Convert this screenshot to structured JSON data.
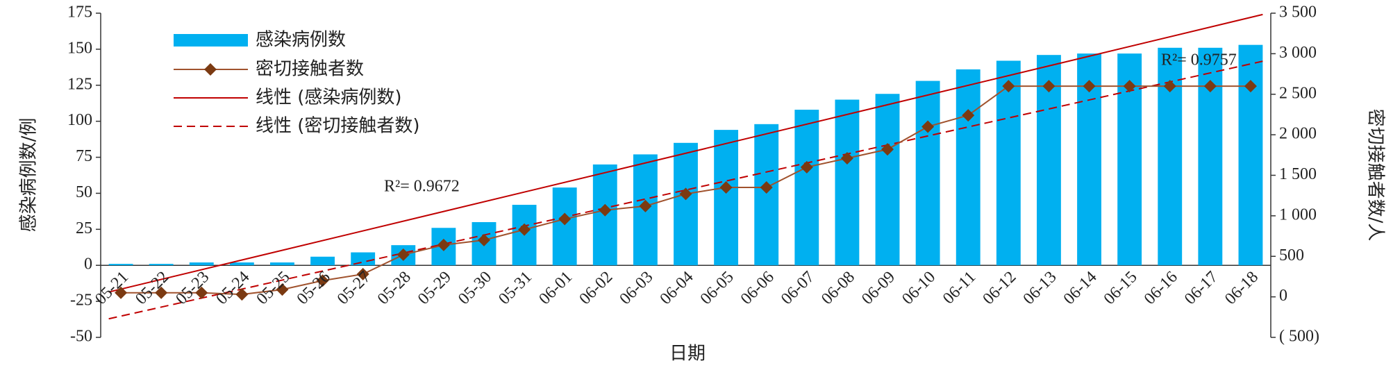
{
  "chart_data": {
    "type": "bar",
    "x_label": "日期",
    "y_label": "感染病例数/例",
    "y2_label": "密切接触者数/人",
    "categories": [
      "05-21",
      "05-22",
      "05-23",
      "05-24",
      "05-25",
      "05-26",
      "05-27",
      "05-28",
      "05-29",
      "05-30",
      "05-31",
      "06-01",
      "06-02",
      "06-03",
      "06-04",
      "06-05",
      "06-06",
      "06-07",
      "06-08",
      "06-09",
      "06-10",
      "06-11",
      "06-12",
      "06-13",
      "06-14",
      "06-15",
      "06-16",
      "06-17",
      "06-18"
    ],
    "series": [
      {
        "name": "感染病例数",
        "type": "bar",
        "color": "#00b0f0",
        "values": [
          1,
          1,
          2,
          2,
          2,
          6,
          9,
          14,
          26,
          30,
          42,
          54,
          70,
          77,
          85,
          94,
          98,
          108,
          115,
          119,
          128,
          136,
          142,
          146,
          147,
          147,
          151,
          151,
          153
        ]
      },
      {
        "name": "密切接触者数",
        "type": "line",
        "axis": "y2",
        "color": "#a0522d",
        "marker_color": "#7b3a12",
        "values": [
          50,
          50,
          50,
          30,
          90,
          200,
          280,
          520,
          640,
          700,
          830,
          960,
          1070,
          1120,
          1270,
          1350,
          1350,
          1600,
          1710,
          1820,
          2100,
          2240,
          2600,
          2600,
          2600,
          2600,
          2600,
          2600,
          2600
        ]
      }
    ],
    "trendlines": [
      {
        "name": "线性 (感染病例数)",
        "of": 0,
        "color": "#c00000",
        "dash": false,
        "annotation": "R²= 0.9672"
      },
      {
        "name": "线性 (密切接触者数)",
        "of": 1,
        "color": "#c00000",
        "dash": true,
        "annotation": "R²= 0.9757"
      }
    ],
    "ylim": [
      -50,
      175
    ],
    "yticks": [
      -50,
      -25,
      0,
      25,
      50,
      75,
      100,
      125,
      150,
      175
    ],
    "y2lim": [
      -500,
      3500
    ],
    "y2ticks": [
      {
        "value": -500,
        "label": "( 500)"
      },
      0,
      500,
      {
        "value": 1000,
        "label": "1 000"
      },
      {
        "value": 1500,
        "label": "1 500"
      },
      {
        "value": 2000,
        "label": "2 000"
      },
      {
        "value": 2500,
        "label": "2 500"
      },
      {
        "value": 3000,
        "label": "3 000"
      },
      {
        "value": 3500,
        "label": "3 500"
      }
    ],
    "negative_tick_color": "#e00000",
    "legend": "top-left"
  }
}
